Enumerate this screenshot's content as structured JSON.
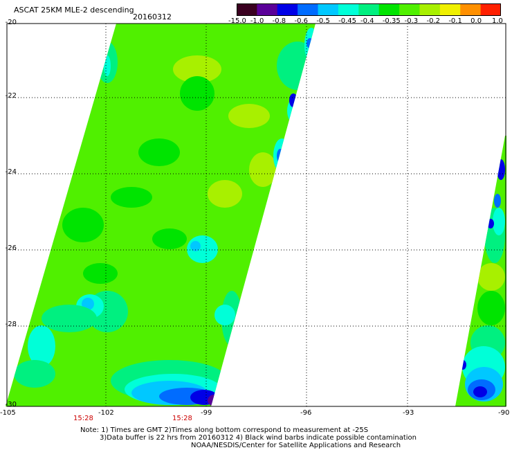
{
  "header": {
    "title": "ASCAT 25KM MLE-2 descending",
    "date": "20160312"
  },
  "colorbar": {
    "tick_labels": [
      "-15.0",
      "-1.0",
      "-0.8",
      "-0.6",
      "-0.5",
      "-0.45",
      "-0.4",
      "-0.35",
      "-0.3",
      "-0.2",
      "-0.1",
      "0.0",
      "1.0"
    ],
    "colors": [
      "#3a0020",
      "#5a0098",
      "#0000e6",
      "#006cff",
      "#00c8ff",
      "#00ffd8",
      "#00f080",
      "#00e400",
      "#50f000",
      "#a8f000",
      "#f0f000",
      "#ff9000",
      "#ff2000"
    ]
  },
  "axes": {
    "lat_labels": [
      "-20",
      "-22",
      "-24",
      "-26",
      "-28",
      "-30"
    ],
    "lon_labels": [
      "-105",
      "-102",
      "-99",
      "-96",
      "-93",
      "-90"
    ]
  },
  "times": [
    "15:28",
    "15:28"
  ],
  "notes": [
    "Note: 1) Times are GMT 2)Times along bottom correspond to measurement at -25S",
    "3)Data buffer is 22 hrs from 20160312 4) Black wind barbs indicate possible contamination",
    "NOAA/NESDIS/Center for Satellite Applications and Research"
  ],
  "map_colors": {
    "green": "#00e400",
    "lime": "#50f000",
    "yellowgreen": "#a8f000",
    "spring": "#00f080",
    "cyan": "#00ffd8",
    "sky": "#00c8ff",
    "blue": "#006cff",
    "deepblue": "#0000e6",
    "purple": "#5a0098"
  }
}
